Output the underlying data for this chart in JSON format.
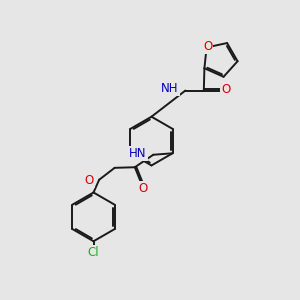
{
  "bg_color": "#e6e6e6",
  "bond_color": "#1a1a1a",
  "bond_width": 1.4,
  "dbo": 0.055,
  "atom_colors": {
    "O": "#dd0000",
    "N": "#0000bb",
    "Cl": "#22aa22",
    "C": "#1a1a1a"
  },
  "fs": 8.5
}
